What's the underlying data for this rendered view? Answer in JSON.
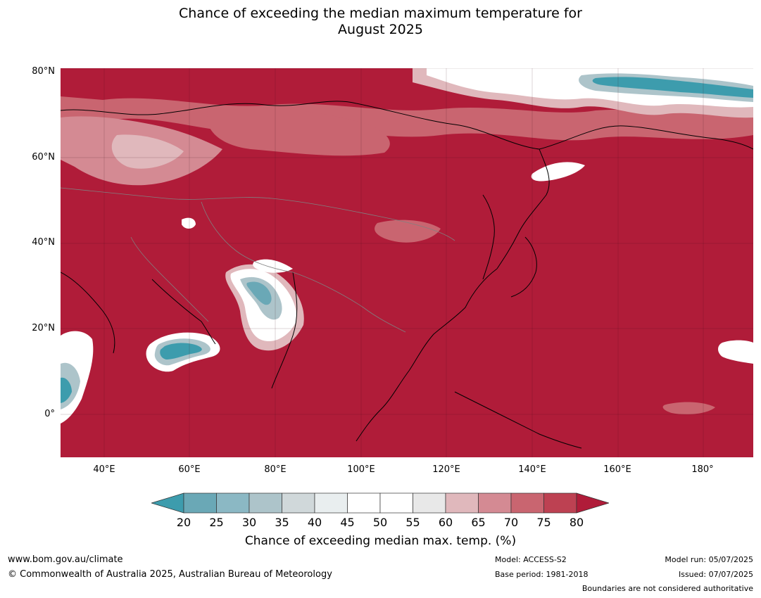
{
  "title": {
    "line1": "Chance of exceeding the median maximum temperature for",
    "line2": "August 2025"
  },
  "axes": {
    "y_ticks": [
      "80°N",
      "60°N",
      "40°N",
      "20°N",
      "0°"
    ],
    "x_ticks": [
      "40°E",
      "60°E",
      "80°E",
      "100°E",
      "120°E",
      "140°E",
      "160°E",
      "180°"
    ]
  },
  "colorbar": {
    "ticks": [
      "20",
      "25",
      "30",
      "35",
      "40",
      "45",
      "50",
      "55",
      "60",
      "65",
      "70",
      "75",
      "80"
    ],
    "colors": [
      "#6aa8b6",
      "#8bb8c4",
      "#adc4ca",
      "#d0d8da",
      "#e9eeef",
      "#ffffff",
      "#ffffff",
      "#e8e8e8",
      "#e0b8bc",
      "#d48a93",
      "#c96570",
      "#bd4152"
    ],
    "low_color": "#3d9cad",
    "high_color": "#b01c39",
    "label": "Chance of exceeding median max. temp. (%)"
  },
  "map_colors": {
    "base": "#b01c39",
    "light_red": "#c96570",
    "pink": "#d48a93",
    "pale": "#e0b8bc",
    "white": "#ffffff",
    "pale_blue": "#adc4ca",
    "teal": "#3d9cad",
    "coast": "#000000",
    "border": "#808080"
  },
  "footer": {
    "website": "www.bom.gov.au/climate",
    "copyright": "© Commonwealth of Australia 2025, Australian Bureau of Meteorology",
    "model": "Model: ACCESS-S2",
    "base_period": "Base period: 1981-2018",
    "model_run": "Model run: 05/07/2025",
    "issued": "Issued: 07/07/2025",
    "disclaimer": "Boundaries are not considered authoritative"
  }
}
